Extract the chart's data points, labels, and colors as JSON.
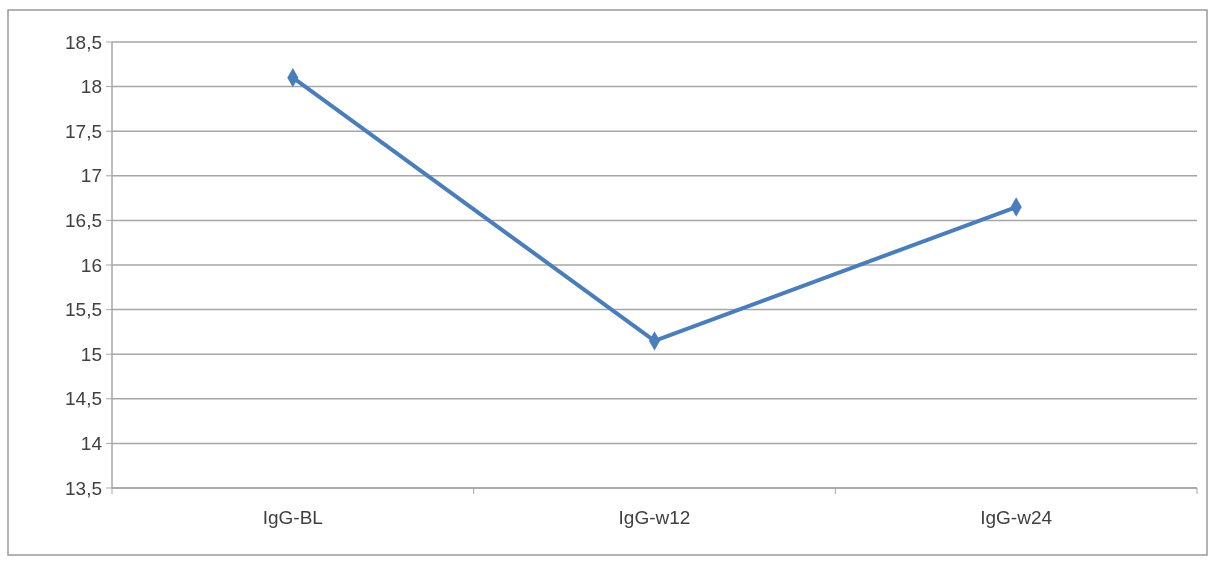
{
  "chart_data": {
    "type": "line",
    "categories": [
      "IgG-BL",
      "IgG-w12",
      "IgG-w24"
    ],
    "series": [
      {
        "color": "#4a7ebb",
        "values": [
          18.1,
          15.15,
          16.65
        ]
      }
    ],
    "ylim": [
      13.5,
      18.5
    ],
    "yticks": [
      {
        "value": 13.5,
        "label": "13,5"
      },
      {
        "value": 14,
        "label": "14"
      },
      {
        "value": 14.5,
        "label": "14,5"
      },
      {
        "value": 15,
        "label": "15"
      },
      {
        "value": 15.5,
        "label": "15,5"
      },
      {
        "value": 16,
        "label": "16"
      },
      {
        "value": 16.5,
        "label": "16,5"
      },
      {
        "value": 17,
        "label": "17"
      },
      {
        "value": 17.5,
        "label": "17,5"
      },
      {
        "value": 18,
        "label": "18"
      },
      {
        "value": 18.5,
        "label": "18,5"
      }
    ],
    "grid": "y",
    "marker": "diamond"
  }
}
